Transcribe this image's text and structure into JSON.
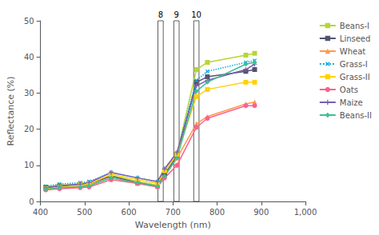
{
  "chart_data": {
    "type": "line",
    "xlabel": "Wavelength (nm)",
    "ylabel": "Reflectance (%)",
    "xlim": [
      400,
      1000
    ],
    "ylim": [
      0,
      50
    ],
    "xticks": [
      400,
      500,
      600,
      700,
      800,
      900,
      1000
    ],
    "yticks": [
      0,
      10,
      20,
      30,
      40,
      50
    ],
    "grid": false,
    "legend": "upper right",
    "bands": [
      {
        "label": "8",
        "x": 672,
        "range": [
          666,
          678
        ]
      },
      {
        "label": "9",
        "x": 708,
        "range": [
          702,
          714
        ]
      },
      {
        "label": "10",
        "x": 753,
        "range": [
          747,
          759
        ]
      }
    ],
    "x": [
      412,
      443,
      490,
      510,
      560,
      620,
      665,
      681,
      709,
      753,
      778,
      865,
      885
    ],
    "series": [
      {
        "name": "Beans-I",
        "marker": "square",
        "line_style": "solid",
        "values": [
          4.0,
          4.5,
          4.8,
          5.0,
          7.2,
          5.5,
          4.5,
          8.5,
          13.0,
          36.5,
          38.5,
          40.5,
          41.0
        ]
      },
      {
        "name": "Linseed",
        "marker": "square",
        "line_style": "solid",
        "values": [
          3.8,
          4.2,
          4.5,
          4.8,
          7.0,
          5.2,
          4.2,
          7.5,
          12.5,
          33.0,
          34.5,
          36.0,
          36.5
        ]
      },
      {
        "name": "Wheat",
        "marker": "triangle",
        "line_style": "solid",
        "values": [
          3.5,
          3.8,
          4.2,
          4.5,
          6.5,
          5.0,
          4.2,
          7.0,
          12.0,
          21.5,
          23.5,
          27.0,
          27.5
        ]
      },
      {
        "name": "Grass-I",
        "marker": "x",
        "line_style": "dotted",
        "values": [
          4.2,
          4.8,
          5.2,
          5.5,
          8.0,
          6.5,
          5.5,
          9.0,
          13.5,
          33.5,
          36.0,
          38.5,
          39.0
        ]
      },
      {
        "name": "Grass-II",
        "marker": "square",
        "line_style": "solid",
        "values": [
          3.5,
          4.0,
          4.5,
          4.8,
          7.5,
          6.0,
          5.0,
          8.5,
          13.0,
          29.0,
          31.0,
          33.0,
          33.0
        ]
      },
      {
        "name": "Oats",
        "marker": "circle",
        "line_style": "solid",
        "values": [
          3.2,
          3.5,
          3.8,
          4.0,
          6.0,
          5.0,
          4.0,
          6.5,
          10.0,
          20.5,
          23.0,
          26.5,
          26.5
        ]
      },
      {
        "name": "Maize",
        "marker": "plus",
        "line_style": "solid",
        "values": [
          3.8,
          4.3,
          4.8,
          5.2,
          8.0,
          6.5,
          5.5,
          9.0,
          13.5,
          32.0,
          33.5,
          36.5,
          38.0
        ]
      },
      {
        "name": "Beans-II",
        "marker": "diamond",
        "line_style": "solid",
        "values": [
          3.3,
          3.8,
          4.0,
          4.3,
          6.5,
          5.2,
          4.2,
          7.0,
          12.0,
          30.5,
          33.0,
          38.0,
          38.5
        ]
      }
    ]
  }
}
